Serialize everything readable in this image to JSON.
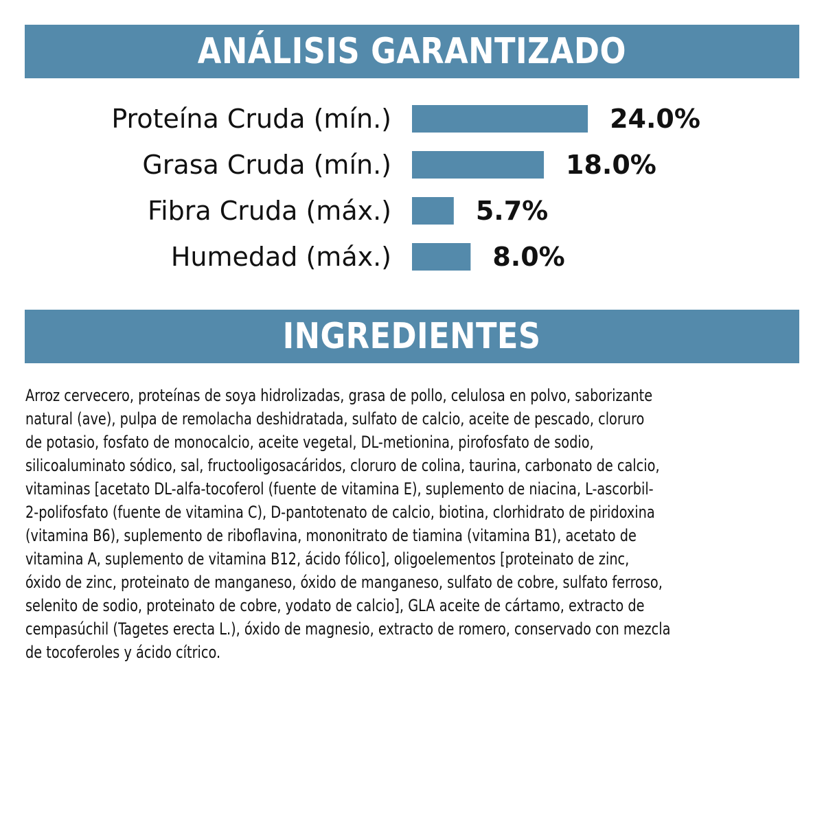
{
  "theme": {
    "banner_color": "#548aab",
    "bar_color": "#548aab",
    "text_color": "#111111"
  },
  "headers": {
    "analysis": "ANÁLISIS GARANTIZADO",
    "ingredients": "INGREDIENTES"
  },
  "chart_data": {
    "type": "bar",
    "orientation": "horizontal",
    "categories": [
      "Proteína Cruda (mín.)",
      "Grasa Cruda (mín.)",
      "Fibra Cruda (máx.)",
      "Humedad (máx.)"
    ],
    "values": [
      24.0,
      18.0,
      5.7,
      8.0
    ],
    "value_labels": [
      "24.0%",
      "18.0%",
      "5.7%",
      "8.0%"
    ],
    "unit": "%",
    "grid": false,
    "legend": "none"
  },
  "ingredients_text": "Arroz cervecero, proteínas de soya hidrolizadas, grasa de pollo, celulosa en polvo, saborizante\nnatural (ave), pulpa de remolacha deshidratada, sulfato de calcio, aceite de pescado, cloruro\nde potasio, fosfato de monocalcio, aceite vegetal, DL-metionina, pirofosfato de sodio,\nsilicoaluminato sódico, sal, fructooligosacáridos, cloruro de colina, taurina, carbonato de calcio,\nvitaminas [acetato DL-alfa-tocoferol (fuente de vitamina E), suplemento de niacina, L-ascorbil-\n2-polifosfato (fuente de vitamina C), D-pantotenato de calcio, biotina, clorhidrato de piridoxina\n(vitamina B6), suplemento de riboflavina, mononitrato de tiamina (vitamina B1), acetato de\nvitamina A, suplemento de vitamina B12, ácido fólico], oligoelementos [proteinato de zinc,\nóxido de zinc, proteinato de manganeso, óxido de manganeso, sulfato de cobre, sulfato ferroso,\nselenito de sodio, proteinato de cobre, yodato de calcio], GLA aceite de cártamo, extracto de\ncempasúchil (Tagetes erecta L.), óxido de magnesio, extracto de romero, conservado con mezcla\nde tocoferoles y ácido cítrico."
}
